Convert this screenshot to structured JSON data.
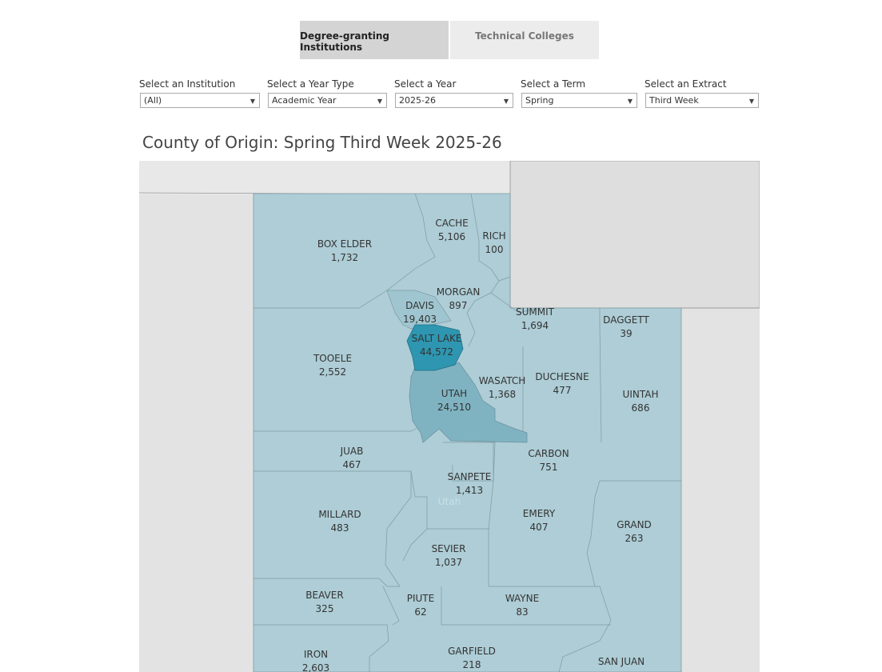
{
  "tabs": [
    {
      "label": "Degree-granting Institutions",
      "active": true
    },
    {
      "label": "Technical Colleges",
      "active": false
    }
  ],
  "filters": [
    {
      "label": "Select an Institution",
      "value": "(All)"
    },
    {
      "label": "Select a Year Type",
      "value": "Academic Year"
    },
    {
      "label": "Select a Year",
      "value": "2025-26"
    },
    {
      "label": "Select a Term",
      "value": "Spring"
    },
    {
      "label": "Select an Extract",
      "value": "Third Week"
    }
  ],
  "map": {
    "title": "County of Origin: Spring Third Week 2025-26",
    "state_label": "Utah",
    "colors": {
      "light": "#aecdd6",
      "medium": "#8fbfcb",
      "dark": "#2e96b0",
      "background": "#e3e3e3",
      "border": "#7f9aa2"
    },
    "counties": [
      {
        "name": "BOX ELDER",
        "value": "1,732"
      },
      {
        "name": "CACHE",
        "value": "5,106"
      },
      {
        "name": "RICH",
        "value": "100"
      },
      {
        "name": "MORGAN",
        "value": "897"
      },
      {
        "name": "DAVIS",
        "value": "19,403"
      },
      {
        "name": "SUMMIT",
        "value": "1,694"
      },
      {
        "name": "DAGGETT",
        "value": "39"
      },
      {
        "name": "SALT LAKE",
        "value": "44,572"
      },
      {
        "name": "TOOELE",
        "value": "2,552"
      },
      {
        "name": "WASATCH",
        "value": "1,368"
      },
      {
        "name": "DUCHESNE",
        "value": "477"
      },
      {
        "name": "UTAH",
        "value": "24,510"
      },
      {
        "name": "UINTAH",
        "value": "686"
      },
      {
        "name": "JUAB",
        "value": "467"
      },
      {
        "name": "CARBON",
        "value": "751"
      },
      {
        "name": "SANPETE",
        "value": "1,413"
      },
      {
        "name": "MILLARD",
        "value": "483"
      },
      {
        "name": "EMERY",
        "value": "407"
      },
      {
        "name": "GRAND",
        "value": "263"
      },
      {
        "name": "SEVIER",
        "value": "1,037"
      },
      {
        "name": "BEAVER",
        "value": "325"
      },
      {
        "name": "PIUTE",
        "value": "62"
      },
      {
        "name": "WAYNE",
        "value": "83"
      },
      {
        "name": "IRON",
        "value": "2,603"
      },
      {
        "name": "GARFIELD",
        "value": "218"
      },
      {
        "name": "SAN JUAN",
        "value": ""
      }
    ]
  }
}
